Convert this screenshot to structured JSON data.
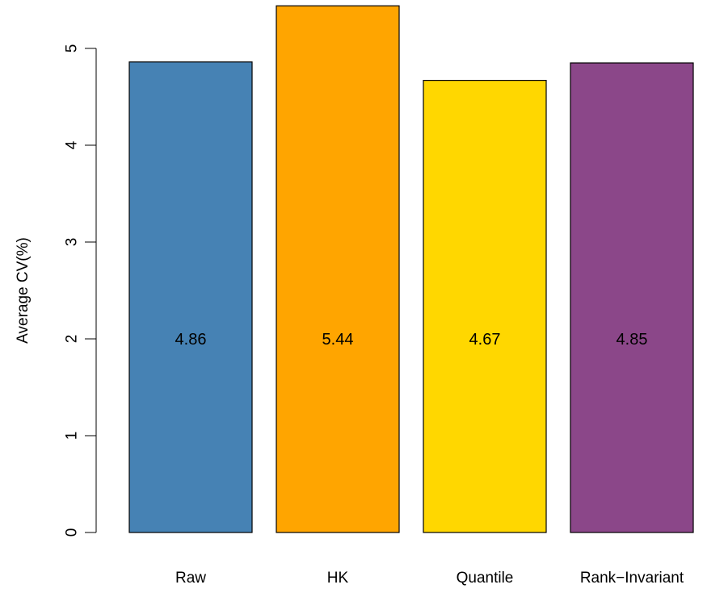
{
  "chart_data": {
    "type": "bar",
    "title": "",
    "xlabel": "",
    "ylabel": "Average CV(%)",
    "ylim": [
      0,
      5.44
    ],
    "yticks": [
      0,
      1,
      2,
      3,
      4,
      5
    ],
    "categories": [
      "Raw",
      "HK",
      "Quantile",
      "Rank−Invariant"
    ],
    "values": [
      4.86,
      5.44,
      4.67,
      4.85
    ],
    "value_labels": [
      "4.86",
      "5.44",
      "4.67",
      "4.85"
    ],
    "value_label_position": 2,
    "colors": [
      "#4682B4",
      "#FFA500",
      "#FFD700",
      "#8B4789"
    ],
    "grid": false,
    "legend": "none"
  }
}
